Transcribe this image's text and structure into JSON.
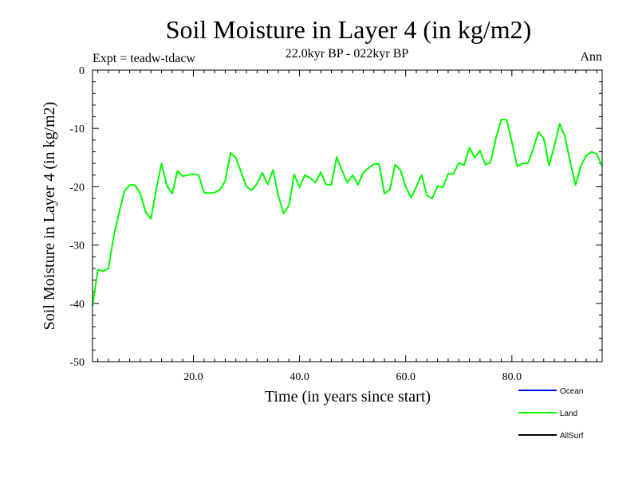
{
  "chart_data": {
    "type": "line",
    "title": "Soil Moisture in Layer 4 (in kg/m2)",
    "subtitle": "22.0kyr BP - 022kyr BP",
    "experiment_label": "Expt = teadw-tdacw",
    "season_label": "Ann",
    "xlabel": "Time (in years since start)",
    "ylabel": "Soil Moisture in Layer 4 (in kg/m2)",
    "xlim": [
      1,
      97
    ],
    "ylim": [
      -50,
      0
    ],
    "xticks": [
      {
        "value": 20,
        "label": "20.0"
      },
      {
        "value": 40,
        "label": "40.0"
      },
      {
        "value": 60,
        "label": "60.0"
      },
      {
        "value": 80,
        "label": "80.0"
      }
    ],
    "yticks": [
      {
        "value": 0,
        "label": "0"
      },
      {
        "value": -10,
        "label": "-10"
      },
      {
        "value": -20,
        "label": "-20"
      },
      {
        "value": -30,
        "label": "-30"
      },
      {
        "value": -40,
        "label": "-40"
      },
      {
        "value": -50,
        "label": "-50"
      }
    ],
    "legend": [
      {
        "name": "Ocean",
        "color": "#0000ff"
      },
      {
        "name": "Land",
        "color": "#00ff00"
      },
      {
        "name": "AllSurf",
        "color": "#000000"
      }
    ],
    "series": [
      {
        "name": "Land",
        "color": "#00ff00",
        "x": [
          1,
          2,
          3,
          4,
          5,
          6,
          7,
          8,
          9,
          10,
          11,
          12,
          13,
          14,
          15,
          16,
          17,
          18,
          19,
          20,
          21,
          22,
          23,
          24,
          25,
          26,
          27,
          28,
          29,
          30,
          31,
          32,
          33,
          34,
          35,
          36,
          37,
          38,
          39,
          40,
          41,
          42,
          43,
          44,
          45,
          46,
          47,
          48,
          49,
          50,
          51,
          52,
          53,
          54,
          55,
          56,
          57,
          58,
          59,
          60,
          61,
          62,
          63,
          64,
          65,
          66,
          67,
          68,
          69,
          70,
          71,
          72,
          73,
          74,
          75,
          76,
          77,
          78,
          79,
          80,
          81,
          82,
          83,
          84,
          85,
          86,
          87,
          88,
          89,
          90,
          91,
          92,
          93,
          94,
          95,
          96,
          97
        ],
        "values": [
          -40.5,
          -34.2,
          -34.5,
          -34.0,
          -28.5,
          -24.5,
          -20.8,
          -19.7,
          -19.7,
          -21.2,
          -24.3,
          -25.5,
          -20.5,
          -16.0,
          -19.8,
          -21.2,
          -17.3,
          -18.2,
          -18.0,
          -17.8,
          -18.0,
          -21.0,
          -21.1,
          -21.0,
          -20.5,
          -19.0,
          -14.2,
          -15.0,
          -17.5,
          -20.0,
          -20.6,
          -19.5,
          -17.6,
          -19.6,
          -17.1,
          -21.5,
          -24.6,
          -23.2,
          -17.9,
          -20.1,
          -18.0,
          -18.5,
          -19.3,
          -17.5,
          -19.6,
          -19.7,
          -14.9,
          -17.2,
          -19.3,
          -18.0,
          -19.7,
          -17.6,
          -16.8,
          -16.1,
          -16.1,
          -21.2,
          -20.5,
          -16.2,
          -17.1,
          -20.0,
          -21.9,
          -20.0,
          -18.0,
          -21.5,
          -22.0,
          -19.9,
          -20.1,
          -17.8,
          -17.8,
          -15.9,
          -16.3,
          -13.3,
          -15.0,
          -13.8,
          -16.2,
          -15.8,
          -11.6,
          -8.5,
          -8.5,
          -12.3,
          -16.5,
          -16.0,
          -16.0,
          -13.6,
          -10.6,
          -11.7,
          -16.4,
          -13.0,
          -9.2,
          -11.4,
          -15.8,
          -19.7,
          -16.4,
          -14.7,
          -14.0,
          -14.4,
          -16.5
        ]
      }
    ]
  }
}
